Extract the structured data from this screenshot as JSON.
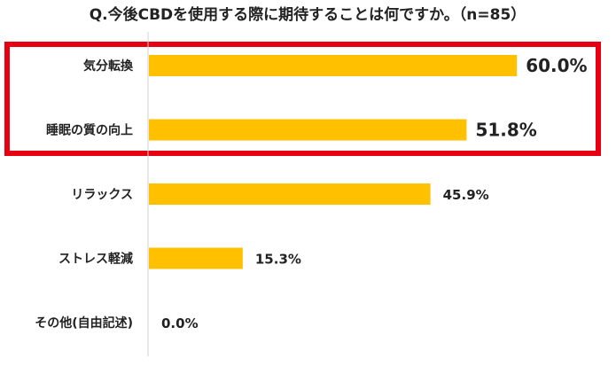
{
  "chart_data": {
    "type": "bar",
    "orientation": "horizontal",
    "title": "Q.今後CBDを使用する際に期待することは何ですか。（n=85）",
    "categories": [
      "気分転換",
      "睡眠の質の向上",
      "リラックス",
      "ストレス軽減",
      "その他(自由記述)"
    ],
    "values": [
      60.0,
      51.8,
      45.9,
      15.3,
      0.0
    ],
    "value_labels": [
      "60.0%",
      "51.8%",
      "45.9%",
      "15.3%",
      "0.0%"
    ],
    "highlighted_categories": [
      "気分転換",
      "睡眠の質の向上"
    ],
    "xlim": [
      0,
      100
    ],
    "grid": false,
    "legend": "none"
  },
  "colors": {
    "bar": "#FFC000",
    "highlight_box": "#E60012",
    "axis": "#D0D0D0",
    "text": "#222222"
  }
}
